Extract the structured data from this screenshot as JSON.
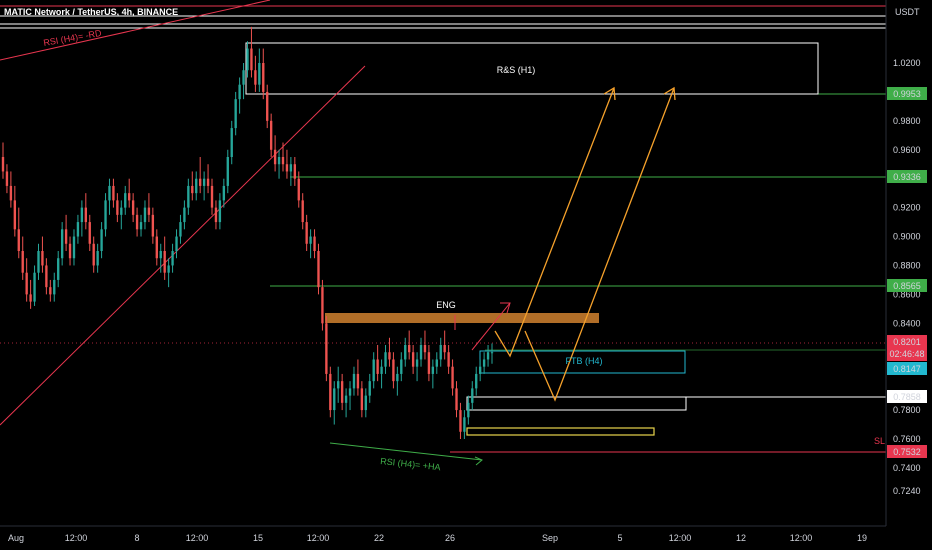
{
  "header": {
    "title": "MATIC Network / TetherUS, 4h, BINANCE",
    "currency": "USDT"
  },
  "colors": {
    "background": "#000000",
    "up": "#26a69a",
    "down": "#ef5350",
    "axis_text": "#d1d4dc",
    "green_line": "#3fae49",
    "red_line": "#e8364f",
    "orange": "#f5a12b",
    "cyan": "#22b8cf",
    "yellow": "#e8d44d",
    "resistance_zone": "#c47a2c",
    "white": "#ffffff"
  },
  "chart_data": {
    "type": "candlestick",
    "symbol": "MATIC Network / TetherUS",
    "interval": "4h",
    "exchange": "BINANCE",
    "quote_currency": "USDT",
    "y_axis_ticks": [
      "1.0200",
      "0.9800",
      "0.9600",
      "0.9400",
      "0.9200",
      "0.9000",
      "0.8800",
      "0.8600",
      "0.8400",
      "0.8200",
      "0.7800",
      "0.7600",
      "0.7400",
      "0.7240"
    ],
    "x_axis_ticks": [
      "Aug",
      "12:00",
      "8",
      "12:00",
      "15",
      "12:00",
      "22",
      "26",
      "Sep",
      "5",
      "12:00",
      "12",
      "12:00",
      "19"
    ],
    "price_levels": [
      {
        "value": "0.9953",
        "style": "green"
      },
      {
        "value": "0.9336",
        "style": "green"
      },
      {
        "value": "0.8565",
        "style": "green"
      },
      {
        "value": "0.7858",
        "style": "white"
      },
      {
        "value": "0.7532",
        "style": "red",
        "label": "SL"
      }
    ],
    "current_price": {
      "value": "0.8201",
      "countdown": "02:46:48"
    },
    "secondary_price": "0.8147",
    "annotations": [
      {
        "text": "R&S (H1)",
        "kind": "zone"
      },
      {
        "text": "FTB (H4)",
        "kind": "zone"
      },
      {
        "text": "ENG",
        "kind": "label"
      },
      {
        "text": "RSI (H4)= -RD",
        "kind": "divergence"
      },
      {
        "text": "RSI (H4)= +HA",
        "kind": "divergence"
      },
      {
        "text": "SL",
        "kind": "label"
      }
    ],
    "ohlc": [
      [
        0.955,
        0.965,
        0.94,
        0.945
      ],
      [
        0.945,
        0.95,
        0.93,
        0.935
      ],
      [
        0.935,
        0.945,
        0.92,
        0.925
      ],
      [
        0.925,
        0.935,
        0.9,
        0.905
      ],
      [
        0.905,
        0.92,
        0.885,
        0.89
      ],
      [
        0.89,
        0.9,
        0.87,
        0.875
      ],
      [
        0.875,
        0.885,
        0.855,
        0.86
      ],
      [
        0.86,
        0.87,
        0.85,
        0.855
      ],
      [
        0.855,
        0.88,
        0.852,
        0.875
      ],
      [
        0.875,
        0.895,
        0.87,
        0.89
      ],
      [
        0.89,
        0.9,
        0.875,
        0.88
      ],
      [
        0.88,
        0.885,
        0.86,
        0.865
      ],
      [
        0.865,
        0.87,
        0.855,
        0.86
      ],
      [
        0.86,
        0.875,
        0.855,
        0.87
      ],
      [
        0.87,
        0.89,
        0.865,
        0.885
      ],
      [
        0.885,
        0.91,
        0.88,
        0.905
      ],
      [
        0.905,
        0.915,
        0.89,
        0.895
      ],
      [
        0.895,
        0.9,
        0.88,
        0.885
      ],
      [
        0.885,
        0.905,
        0.88,
        0.9
      ],
      [
        0.9,
        0.915,
        0.895,
        0.91
      ],
      [
        0.91,
        0.925,
        0.9,
        0.92
      ],
      [
        0.92,
        0.93,
        0.905,
        0.91
      ],
      [
        0.91,
        0.915,
        0.89,
        0.895
      ],
      [
        0.895,
        0.9,
        0.875,
        0.88
      ],
      [
        0.88,
        0.895,
        0.875,
        0.89
      ],
      [
        0.89,
        0.91,
        0.885,
        0.905
      ],
      [
        0.905,
        0.93,
        0.9,
        0.925
      ],
      [
        0.925,
        0.94,
        0.915,
        0.935
      ],
      [
        0.935,
        0.94,
        0.92,
        0.925
      ],
      [
        0.925,
        0.93,
        0.91,
        0.915
      ],
      [
        0.915,
        0.925,
        0.905,
        0.92
      ],
      [
        0.92,
        0.935,
        0.915,
        0.93
      ],
      [
        0.93,
        0.94,
        0.92,
        0.925
      ],
      [
        0.925,
        0.93,
        0.91,
        0.915
      ],
      [
        0.915,
        0.92,
        0.9,
        0.905
      ],
      [
        0.905,
        0.915,
        0.9,
        0.91
      ],
      [
        0.91,
        0.925,
        0.905,
        0.92
      ],
      [
        0.92,
        0.93,
        0.91,
        0.915
      ],
      [
        0.915,
        0.92,
        0.895,
        0.9
      ],
      [
        0.9,
        0.905,
        0.88,
        0.885
      ],
      [
        0.885,
        0.895,
        0.875,
        0.89
      ],
      [
        0.89,
        0.9,
        0.87,
        0.875
      ],
      [
        0.875,
        0.885,
        0.865,
        0.88
      ],
      [
        0.88,
        0.895,
        0.875,
        0.89
      ],
      [
        0.89,
        0.905,
        0.885,
        0.9
      ],
      [
        0.9,
        0.915,
        0.895,
        0.91
      ],
      [
        0.91,
        0.925,
        0.905,
        0.92
      ],
      [
        0.92,
        0.94,
        0.915,
        0.935
      ],
      [
        0.935,
        0.945,
        0.925,
        0.93
      ],
      [
        0.93,
        0.945,
        0.925,
        0.94
      ],
      [
        0.94,
        0.955,
        0.93,
        0.935
      ],
      [
        0.935,
        0.945,
        0.925,
        0.94
      ],
      [
        0.94,
        0.95,
        0.93,
        0.935
      ],
      [
        0.935,
        0.94,
        0.915,
        0.92
      ],
      [
        0.92,
        0.925,
        0.905,
        0.91
      ],
      [
        0.91,
        0.93,
        0.905,
        0.925
      ],
      [
        0.925,
        0.94,
        0.92,
        0.935
      ],
      [
        0.935,
        0.96,
        0.93,
        0.955
      ],
      [
        0.955,
        0.98,
        0.95,
        0.975
      ],
      [
        0.975,
        1.0,
        0.97,
        0.995
      ],
      [
        0.995,
        1.01,
        0.985,
        1.005
      ],
      [
        1.005,
        1.02,
        0.995,
        1.015
      ],
      [
        1.015,
        1.035,
        1.01,
        1.03
      ],
      [
        1.03,
        1.045,
        1.01,
        1.015
      ],
      [
        1.015,
        1.025,
        1.0,
        1.005
      ],
      [
        1.005,
        1.03,
        1.0,
        1.02
      ],
      [
        1.02,
        1.03,
        0.995,
        1.0
      ],
      [
        1.0,
        1.005,
        0.975,
        0.98
      ],
      [
        0.98,
        0.985,
        0.955,
        0.96
      ],
      [
        0.96,
        0.97,
        0.945,
        0.95
      ],
      [
        0.95,
        0.96,
        0.94,
        0.955
      ],
      [
        0.955,
        0.965,
        0.945,
        0.95
      ],
      [
        0.95,
        0.96,
        0.94,
        0.945
      ],
      [
        0.945,
        0.955,
        0.935,
        0.95
      ],
      [
        0.95,
        0.955,
        0.935,
        0.94
      ],
      [
        0.94,
        0.945,
        0.92,
        0.925
      ],
      [
        0.925,
        0.93,
        0.905,
        0.91
      ],
      [
        0.91,
        0.915,
        0.89,
        0.895
      ],
      [
        0.895,
        0.905,
        0.885,
        0.9
      ],
      [
        0.9,
        0.905,
        0.885,
        0.89
      ],
      [
        0.89,
        0.895,
        0.86,
        0.865
      ],
      [
        0.865,
        0.87,
        0.835,
        0.84
      ],
      [
        0.84,
        0.845,
        0.8,
        0.805
      ],
      [
        0.805,
        0.81,
        0.775,
        0.78
      ],
      [
        0.78,
        0.8,
        0.77,
        0.795
      ],
      [
        0.795,
        0.81,
        0.785,
        0.8
      ],
      [
        0.8,
        0.805,
        0.78,
        0.785
      ],
      [
        0.785,
        0.795,
        0.775,
        0.79
      ],
      [
        0.79,
        0.8,
        0.78,
        0.795
      ],
      [
        0.795,
        0.81,
        0.79,
        0.805
      ],
      [
        0.805,
        0.815,
        0.79,
        0.795
      ],
      [
        0.795,
        0.8,
        0.775,
        0.78
      ],
      [
        0.78,
        0.795,
        0.775,
        0.79
      ],
      [
        0.79,
        0.805,
        0.785,
        0.8
      ],
      [
        0.8,
        0.82,
        0.795,
        0.815
      ],
      [
        0.815,
        0.825,
        0.8,
        0.805
      ],
      [
        0.805,
        0.815,
        0.795,
        0.81
      ],
      [
        0.81,
        0.825,
        0.805,
        0.82
      ],
      [
        0.82,
        0.83,
        0.81,
        0.815
      ],
      [
        0.815,
        0.82,
        0.795,
        0.8
      ],
      [
        0.8,
        0.81,
        0.79,
        0.805
      ],
      [
        0.805,
        0.82,
        0.8,
        0.815
      ],
      [
        0.815,
        0.83,
        0.81,
        0.825
      ],
      [
        0.825,
        0.835,
        0.815,
        0.82
      ],
      [
        0.82,
        0.825,
        0.805,
        0.81
      ],
      [
        0.81,
        0.82,
        0.8,
        0.815
      ],
      [
        0.815,
        0.83,
        0.81,
        0.825
      ],
      [
        0.825,
        0.835,
        0.815,
        0.82
      ],
      [
        0.82,
        0.825,
        0.8,
        0.805
      ],
      [
        0.805,
        0.815,
        0.795,
        0.81
      ],
      [
        0.81,
        0.82,
        0.805,
        0.815
      ],
      [
        0.815,
        0.83,
        0.81,
        0.825
      ],
      [
        0.825,
        0.835,
        0.815,
        0.82
      ],
      [
        0.82,
        0.825,
        0.805,
        0.81
      ],
      [
        0.81,
        0.815,
        0.79,
        0.795
      ],
      [
        0.795,
        0.8,
        0.775,
        0.78
      ],
      [
        0.78,
        0.785,
        0.76,
        0.765
      ],
      [
        0.765,
        0.78,
        0.76,
        0.775
      ],
      [
        0.775,
        0.79,
        0.77,
        0.785
      ],
      [
        0.785,
        0.8,
        0.78,
        0.795
      ],
      [
        0.795,
        0.81,
        0.79,
        0.805
      ],
      [
        0.805,
        0.815,
        0.8,
        0.81
      ],
      [
        0.81,
        0.82,
        0.805,
        0.815
      ],
      [
        0.815,
        0.825,
        0.81,
        0.82
      ],
      [
        0.82,
        0.826,
        0.812,
        0.82
      ]
    ]
  }
}
